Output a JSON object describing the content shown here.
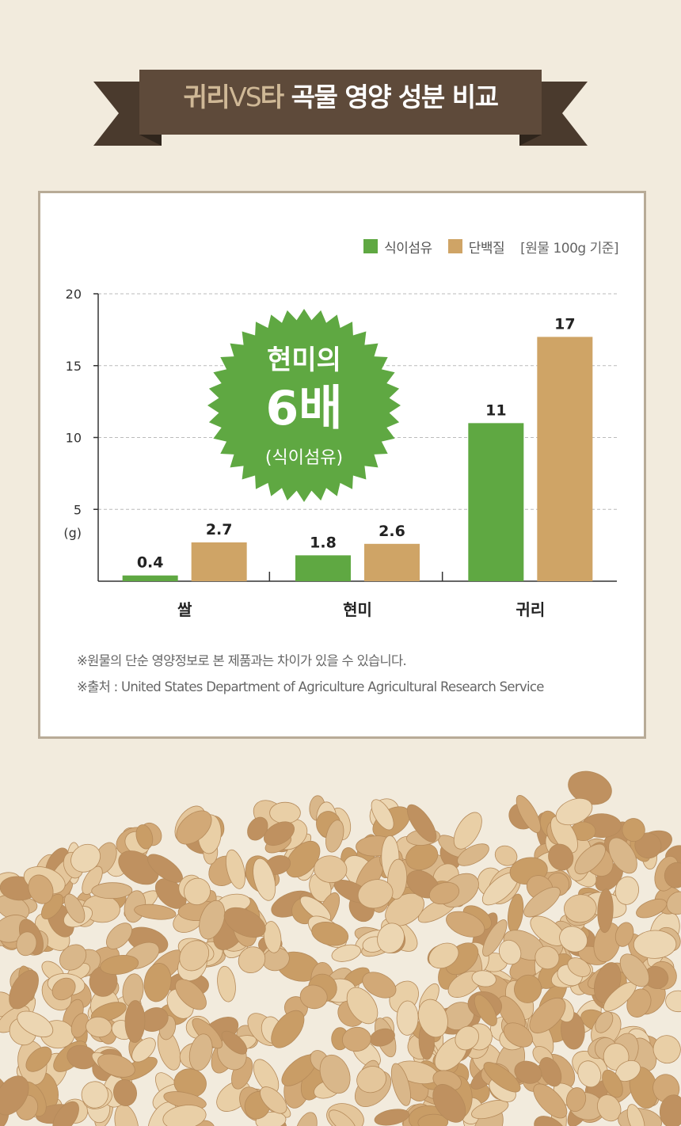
{
  "banner": {
    "title_light_1": "귀리",
    "title_vs": "VS",
    "title_light_2": "타",
    "title_rest": " 곡물 영양 성분 비교"
  },
  "colors": {
    "fiber": "#5fa842",
    "protein": "#cfa466",
    "banner": "#5e4a3a",
    "burst": "#5fa842",
    "background": "#f2ebdd"
  },
  "legend": {
    "fiber": "식이섬유",
    "protein": "단백질",
    "note": "[원물 100g 기준]"
  },
  "callout": {
    "line1": "현미의",
    "line2": "6배",
    "line3": "(식이섬유)"
  },
  "chart_data": {
    "type": "bar",
    "categories": [
      "쌀",
      "현미",
      "귀리"
    ],
    "series": [
      {
        "name": "식이섬유",
        "values": [
          0.4,
          1.8,
          11
        ],
        "labels": [
          "0.4",
          "1.8",
          "11"
        ],
        "color": "#5fa842"
      },
      {
        "name": "단백질",
        "values": [
          2.7,
          2.6,
          17
        ],
        "labels": [
          "2.7",
          "2.6",
          "17"
        ],
        "color": "#cfa466"
      }
    ],
    "yticks": [
      5,
      10,
      15,
      20
    ],
    "ylabel": "(g)",
    "ylim": [
      0,
      20
    ],
    "grid": true,
    "legend_position": "top-right"
  },
  "notes": [
    "※원물의 단순 영양정보로 본 제품과는 차이가 있을 수 있습니다.",
    "※출처 : United States Department of Agriculture Agricultural Research Service"
  ]
}
